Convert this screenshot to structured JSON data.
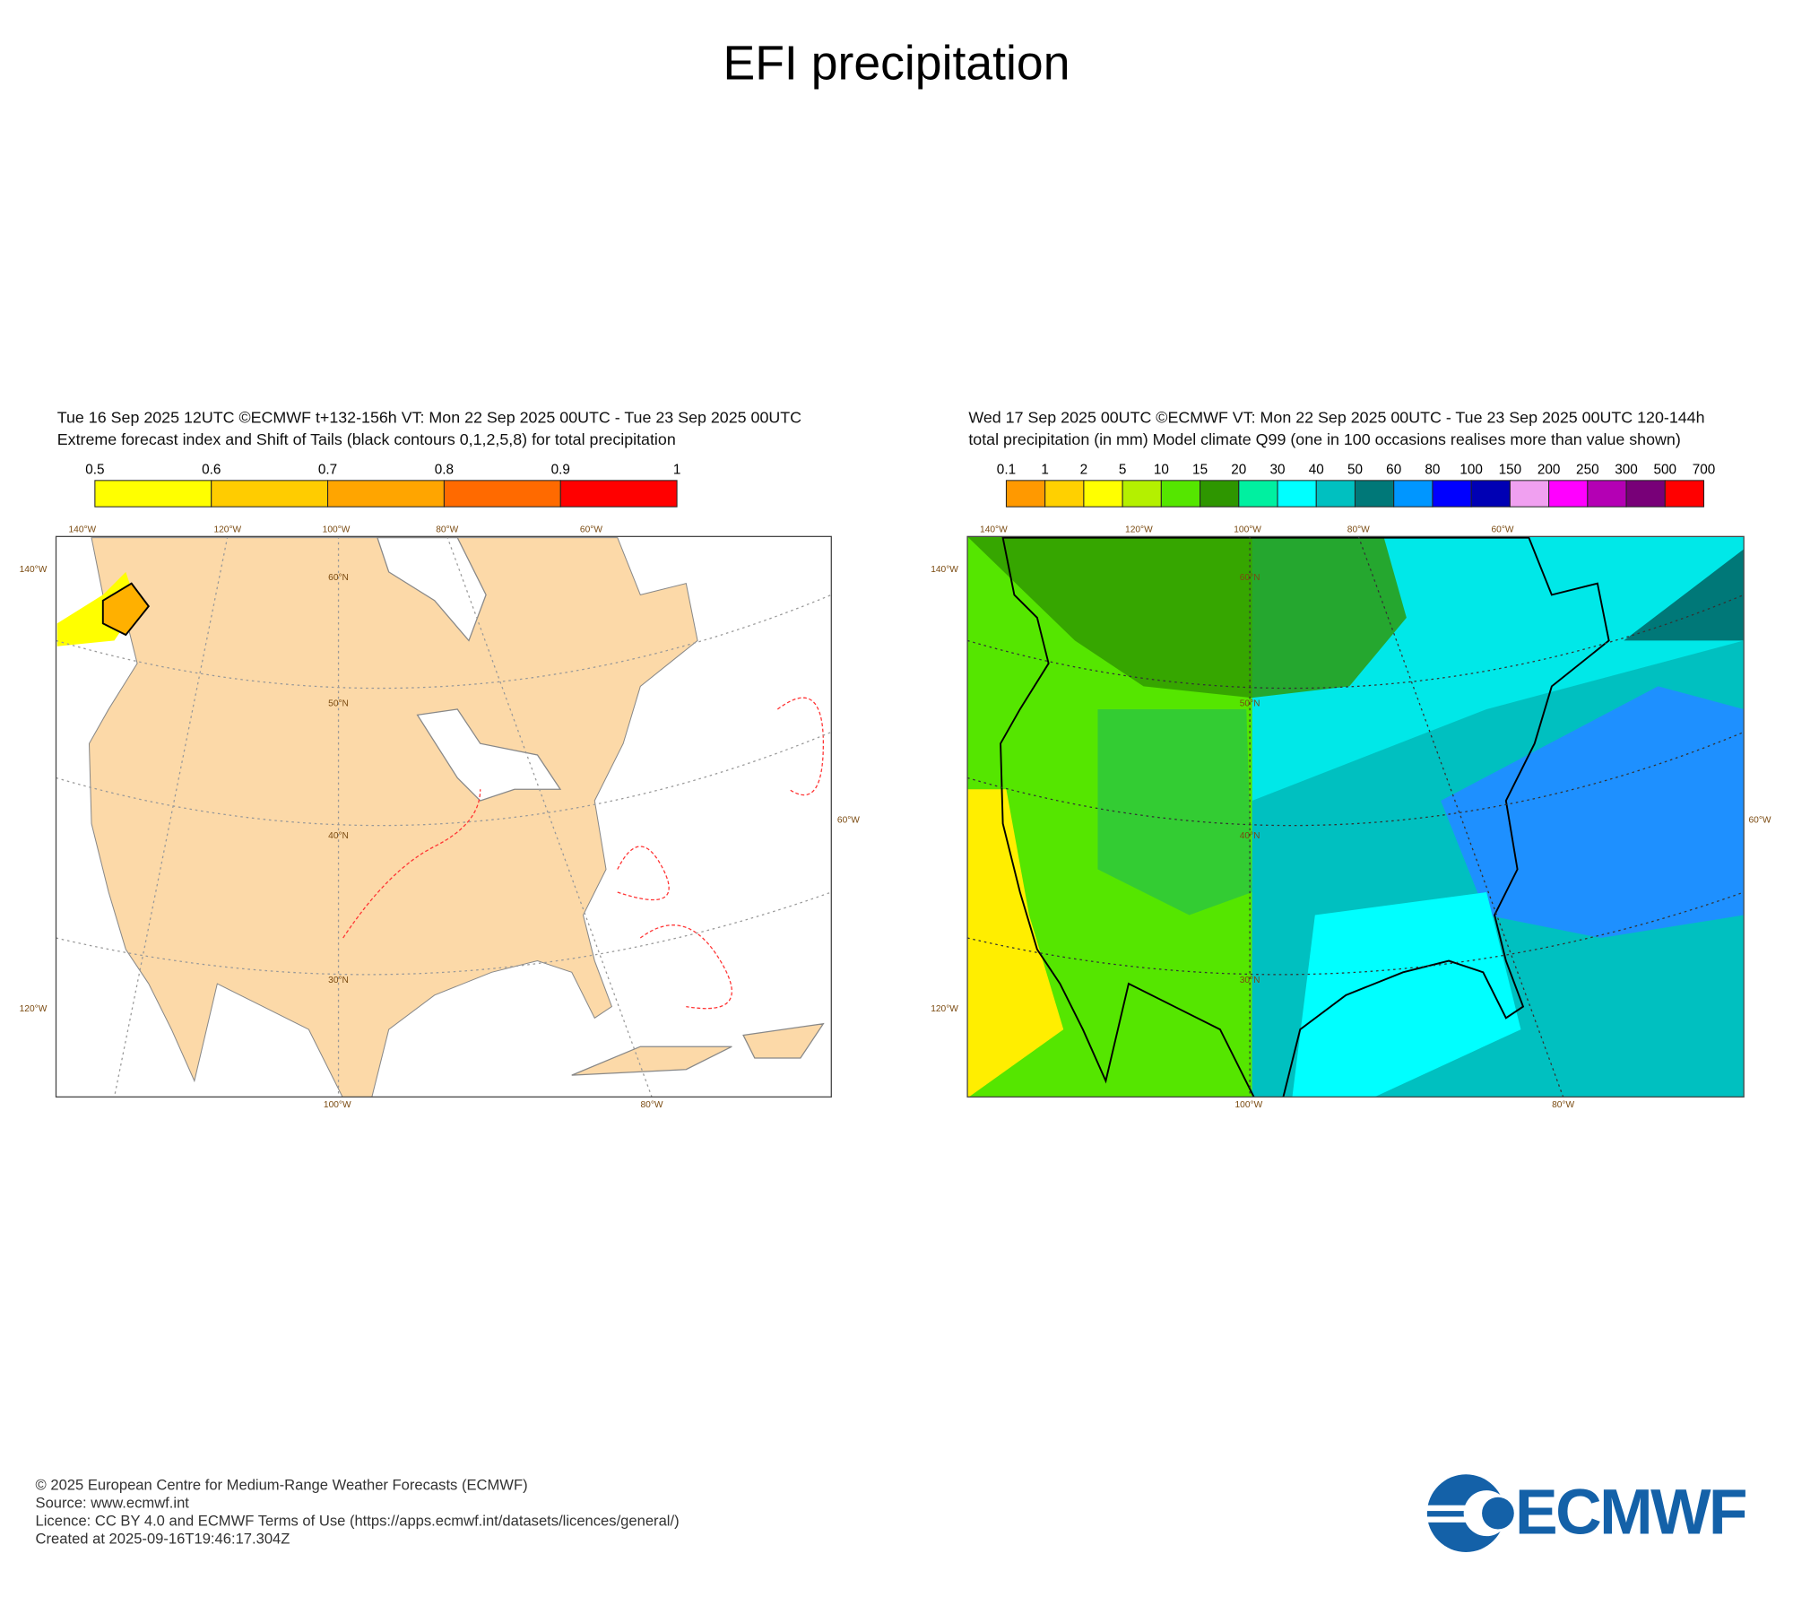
{
  "title": "EFI precipitation",
  "panels": [
    {
      "header": [
        "Tue 16 Sep 2025 12UTC ©ECMWF t+132-156h  VT: Mon 22 Sep 2025 00UTC - Tue 23 Sep 2025 00UTC",
        "Extreme forecast index and Shift of Tails (black contours 0,1,2,5,8) for total precipitation"
      ],
      "colorbar": {
        "labels": [
          "0.5",
          "0.6",
          "0.7",
          "0.8",
          "0.9",
          "1"
        ],
        "colors": [
          "#ffff00",
          "#ffcc00",
          "#ffa500",
          "#ff6a00",
          "#ff0000"
        ]
      },
      "map_labels": {
        "top": [
          "140°W",
          "120°W",
          "100°W",
          "80°W",
          "60°W"
        ],
        "left": [
          "140°W",
          "120°W"
        ],
        "bottom": [
          "100°W",
          "80°W"
        ],
        "right": [
          "60°W"
        ],
        "lat": [
          "60°N",
          "50°N",
          "40°N",
          "30°N"
        ]
      }
    },
    {
      "header": [
        "Wed 17 Sep 2025 00UTC ©ECMWF VT: Mon 22 Sep 2025 00UTC - Tue 23 Sep 2025 00UTC   120-144h",
        "total precipitation (in mm)  Model climate Q99 (one in 100 occasions realises more than value shown)"
      ],
      "colorbar": {
        "labels": [
          "0.1",
          "1",
          "2",
          "5",
          "10",
          "15",
          "20",
          "30",
          "40",
          "50",
          "60",
          "80",
          "100",
          "150",
          "200",
          "250",
          "300",
          "500",
          "700"
        ],
        "colors": [
          "#ff9900",
          "#ffd000",
          "#ffff00",
          "#b4f000",
          "#55e600",
          "#2e9600",
          "#00f0a0",
          "#00ffff",
          "#00c0c0",
          "#007878",
          "#0096ff",
          "#0000ff",
          "#0000b4",
          "#f0a0f0",
          "#ff00ff",
          "#b400b4",
          "#780078",
          "#ff0000"
        ]
      },
      "map_labels": {
        "top": [
          "140°W",
          "120°W",
          "100°W",
          "80°W",
          "60°W"
        ],
        "left": [
          "140°W",
          "120°W"
        ],
        "bottom": [
          "100°W",
          "80°W"
        ],
        "right": [
          "60°W"
        ],
        "lat": [
          "60°N",
          "50°N",
          "40°N",
          "30°N"
        ]
      }
    }
  ],
  "footer": [
    "© 2025 European Centre for Medium-Range Weather Forecasts (ECMWF)",
    "Source: www.ecmwf.int",
    "Licence: CC BY 4.0 and ECMWF Terms of Use (https://apps.ecmwf.int/datasets/licences/general/)",
    "Created at 2025-09-16T19:46:17.304Z"
  ],
  "logo": "ECMWF"
}
